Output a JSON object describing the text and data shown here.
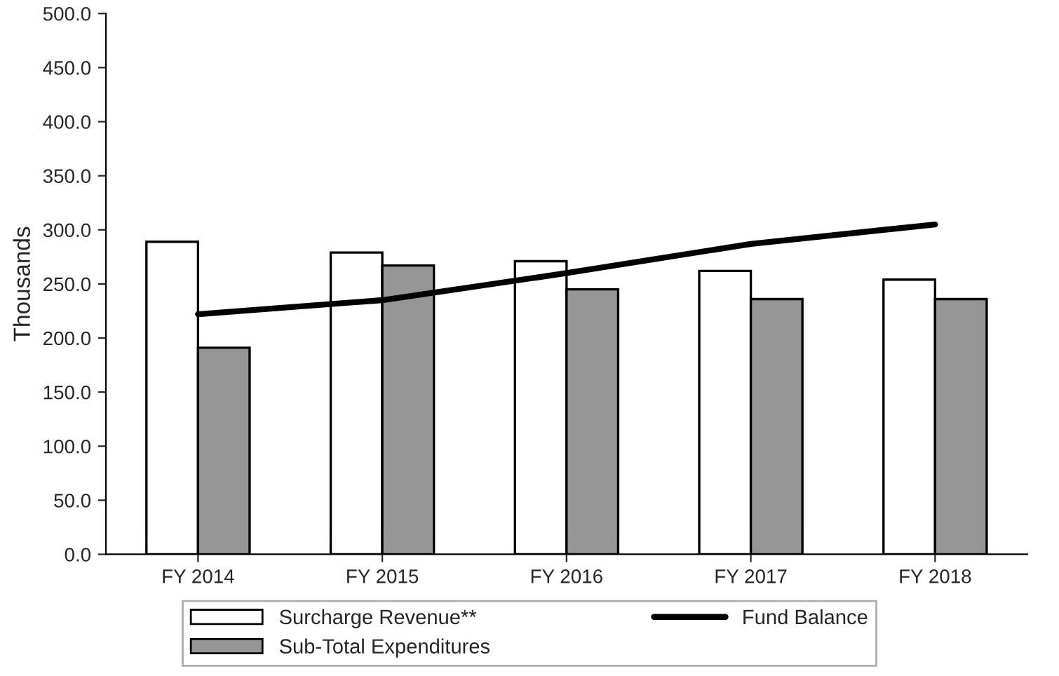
{
  "chart_data": {
    "type": "bar",
    "ylabel": "Thousands",
    "categories": [
      "FY 2014",
      "FY 2015",
      "FY 2016",
      "FY 2017",
      "FY 2018"
    ],
    "series": [
      {
        "name": "Surcharge Revenue**",
        "color": "#ffffff",
        "values": [
          289,
          279,
          271,
          262,
          254
        ]
      },
      {
        "name": "Sub-Total Expenditures",
        "color": "#969696",
        "values": [
          191,
          267,
          245,
          236,
          236
        ]
      },
      {
        "name": "Fund Balance",
        "type": "line",
        "color": "#000000",
        "values": [
          222,
          235,
          260,
          287,
          305
        ]
      }
    ],
    "ylim": [
      0,
      500
    ],
    "yticks": [
      {
        "value": 0,
        "label": "0.0"
      },
      {
        "value": 50,
        "label": "50.0"
      },
      {
        "value": 100,
        "label": "100.0"
      },
      {
        "value": 150,
        "label": "150.0"
      },
      {
        "value": 200,
        "label": "200.0"
      },
      {
        "value": 250,
        "label": "250.0"
      },
      {
        "value": 300,
        "label": "300.0"
      },
      {
        "value": 350,
        "label": "350.0"
      },
      {
        "value": 400,
        "label": "400.0"
      },
      {
        "value": 450,
        "label": "450.0"
      },
      {
        "value": 500,
        "label": "500.0"
      }
    ],
    "grid": false,
    "legend": "bottom",
    "marker": "none",
    "line_style": "solid"
  }
}
